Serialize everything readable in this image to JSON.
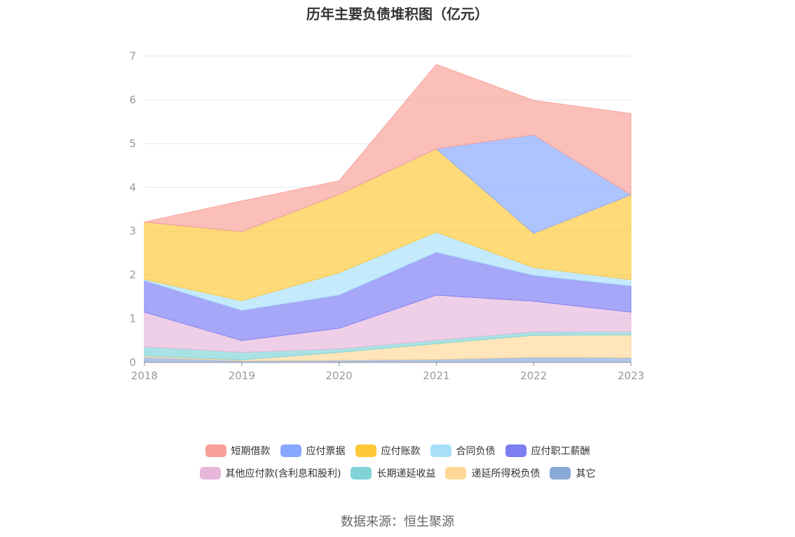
{
  "chart_data": {
    "type": "area",
    "stacked": true,
    "title": "历年主要负债堆积图（亿元）",
    "x": [
      "2018",
      "2019",
      "2020",
      "2021",
      "2022",
      "2023"
    ],
    "ylim": [
      0,
      7
    ],
    "yticks": [
      0,
      1,
      2,
      3,
      4,
      5,
      6,
      7
    ],
    "grid": true,
    "legend_position": "bottom",
    "series": [
      {
        "name": "其它",
        "color": "#8aa8d8",
        "values": [
          0.12,
          0.04,
          0.05,
          0.07,
          0.12,
          0.11
        ]
      },
      {
        "name": "递延所得税负债",
        "color": "#ffd898",
        "values": [
          0.03,
          0.02,
          0.18,
          0.36,
          0.5,
          0.52
        ]
      },
      {
        "name": "长期递延收益",
        "color": "#80d4d8",
        "values": [
          0.21,
          0.17,
          0.08,
          0.08,
          0.08,
          0.07
        ]
      },
      {
        "name": "其他应付款(含利息和股利)",
        "color": "#e8b8dc",
        "values": [
          0.79,
          0.27,
          0.47,
          1.03,
          0.7,
          0.45
        ]
      },
      {
        "name": "应付职工薪酬",
        "color": "#7c7ef4",
        "values": [
          0.72,
          0.69,
          0.76,
          0.98,
          0.59,
          0.6
        ]
      },
      {
        "name": "合同负债",
        "color": "#a8e0fa",
        "values": [
          0.03,
          0.22,
          0.51,
          0.46,
          0.18,
          0.14
        ]
      },
      {
        "name": "应付账款",
        "color": "#ffc838",
        "values": [
          1.31,
          1.58,
          1.79,
          1.9,
          0.78,
          1.94
        ]
      },
      {
        "name": "应付票据",
        "color": "#88a8ff",
        "values": [
          0,
          0,
          0,
          0,
          2.25,
          0
        ]
      },
      {
        "name": "短期借款",
        "color": "#f8a098",
        "values": [
          0,
          0.7,
          0.31,
          1.93,
          0.79,
          1.86
        ]
      }
    ]
  },
  "legend_rows": [
    [
      "短期借款",
      "应付票据",
      "应付账款",
      "合同负债",
      "应付职工薪酬"
    ],
    [
      "其他应付款(含利息和股利)",
      "长期递延收益",
      "递延所得税负债",
      "其它"
    ]
  ],
  "source": "数据来源：恒生聚源"
}
